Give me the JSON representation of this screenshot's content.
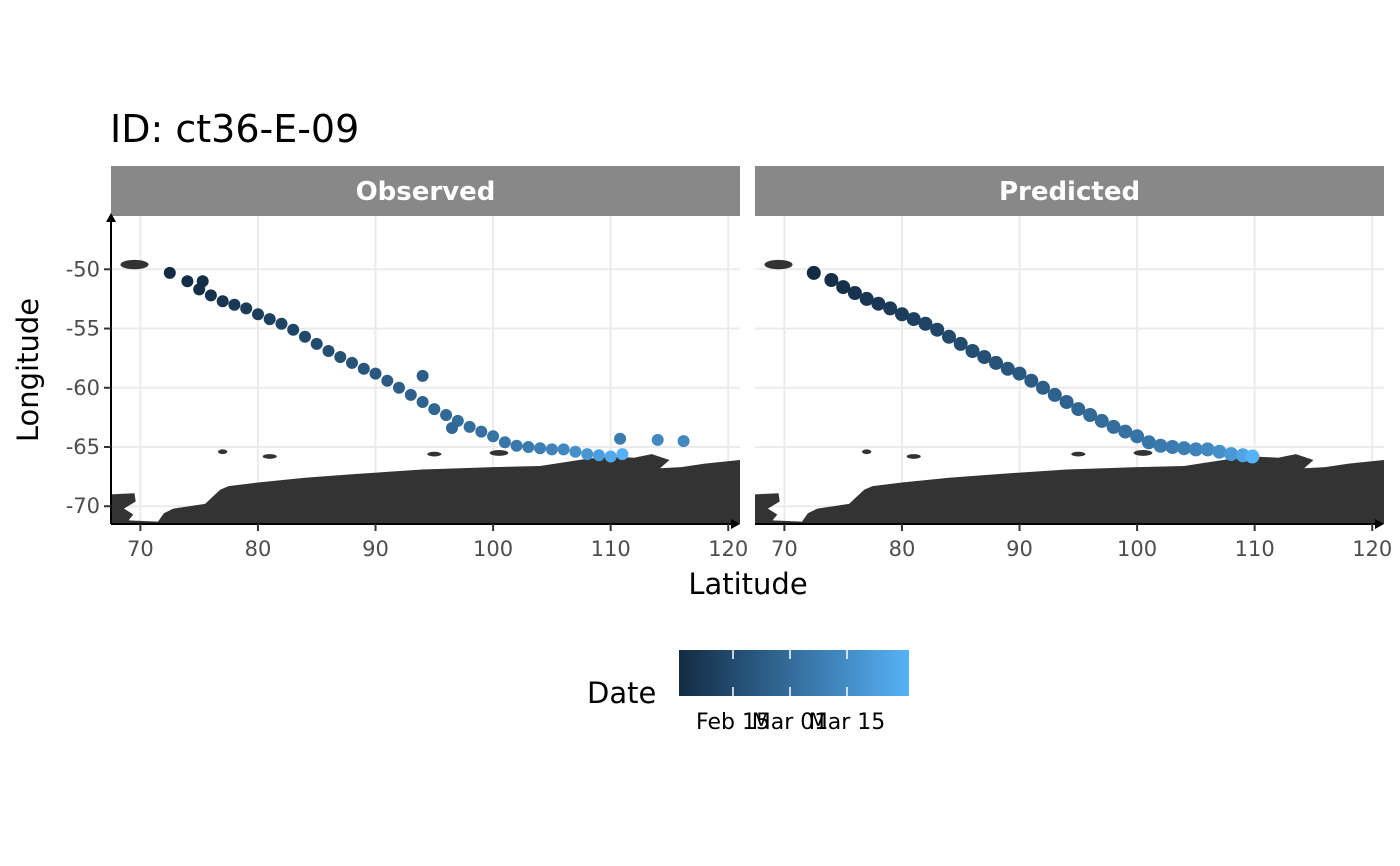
{
  "chart_data": {
    "type": "scatter",
    "title": "ID: ct36-E-09",
    "xlabel": "Latitude",
    "ylabel": "Longitude",
    "xlim": [
      67.5,
      121
    ],
    "ylim": [
      -71.5,
      -45.5
    ],
    "x_ticks": [
      70,
      80,
      90,
      100,
      110,
      120
    ],
    "y_ticks": [
      -50,
      -55,
      -60,
      -65,
      -70
    ],
    "grid": true,
    "background_map": "coastline (dark grey landmass along the bottom)",
    "colors": {
      "panel_strip": "#888888",
      "land": "#333333",
      "grid": "#ebebeb",
      "point_start": "#132b43",
      "point_end": "#56b1f7"
    },
    "facets": [
      "Observed",
      "Predicted"
    ],
    "color_scale": {
      "title": "Date",
      "labels": [
        "Feb 15",
        "Mar 01",
        "Mar 15"
      ],
      "low_color": "#132b43",
      "high_color": "#56b1f7"
    },
    "series": [
      {
        "name": "Observed",
        "x": [
          72.5,
          74,
          75,
          76,
          77,
          78,
          79,
          80,
          81,
          82,
          83,
          84,
          85,
          86,
          87,
          88,
          89,
          90,
          91,
          92,
          93,
          94,
          95,
          96,
          97,
          98,
          99,
          100,
          101,
          102,
          103,
          104,
          105,
          106,
          107,
          108,
          109,
          110,
          111,
          75.3,
          94,
          96.5,
          110.8,
          114,
          116.2
        ],
        "y": [
          -50.3,
          -51,
          -51.7,
          -52.2,
          -52.7,
          -53,
          -53.3,
          -53.8,
          -54.2,
          -54.6,
          -55.1,
          -55.7,
          -56.3,
          -56.9,
          -57.4,
          -57.9,
          -58.4,
          -58.8,
          -59.4,
          -60,
          -60.6,
          -61.2,
          -61.8,
          -62.3,
          -62.8,
          -63.3,
          -63.7,
          -64.1,
          -64.6,
          -64.9,
          -65.0,
          -65.1,
          -65.2,
          -65.2,
          -65.4,
          -65.6,
          -65.7,
          -65.8,
          -65.6,
          -51.0,
          -59.0,
          -63.4,
          -64.3,
          -64.4,
          -64.5
        ],
        "t": [
          0,
          0.02,
          0.04,
          0.06,
          0.08,
          0.1,
          0.12,
          0.14,
          0.16,
          0.18,
          0.2,
          0.22,
          0.24,
          0.26,
          0.28,
          0.3,
          0.32,
          0.34,
          0.36,
          0.38,
          0.4,
          0.42,
          0.44,
          0.46,
          0.48,
          0.5,
          0.52,
          0.54,
          0.56,
          0.58,
          0.6,
          0.63,
          0.66,
          0.7,
          0.75,
          0.8,
          0.86,
          0.93,
          1.0,
          0.03,
          0.38,
          0.45,
          0.6,
          0.7,
          0.7
        ]
      },
      {
        "name": "Predicted",
        "x": [
          72.5,
          74,
          75,
          76,
          77,
          78,
          79,
          80,
          81,
          82,
          83,
          84,
          85,
          86,
          87,
          88,
          89,
          90,
          91,
          92,
          93,
          94,
          95,
          96,
          97,
          98,
          99,
          100,
          101,
          102,
          103,
          104,
          105,
          106,
          107,
          108,
          109,
          109.8
        ],
        "y": [
          -50.3,
          -50.9,
          -51.5,
          -52.0,
          -52.5,
          -52.9,
          -53.3,
          -53.8,
          -54.2,
          -54.6,
          -55.1,
          -55.7,
          -56.3,
          -56.9,
          -57.4,
          -57.9,
          -58.4,
          -58.8,
          -59.4,
          -60,
          -60.6,
          -61.2,
          -61.8,
          -62.3,
          -62.8,
          -63.3,
          -63.7,
          -64.1,
          -64.6,
          -64.9,
          -65.0,
          -65.1,
          -65.2,
          -65.2,
          -65.4,
          -65.6,
          -65.7,
          -65.8
        ],
        "t": [
          0,
          0.02,
          0.04,
          0.06,
          0.08,
          0.1,
          0.12,
          0.14,
          0.16,
          0.18,
          0.2,
          0.22,
          0.24,
          0.26,
          0.28,
          0.3,
          0.32,
          0.34,
          0.36,
          0.38,
          0.4,
          0.42,
          0.44,
          0.46,
          0.48,
          0.5,
          0.52,
          0.54,
          0.56,
          0.58,
          0.6,
          0.63,
          0.66,
          0.7,
          0.75,
          0.82,
          0.9,
          1.0
        ]
      }
    ]
  }
}
